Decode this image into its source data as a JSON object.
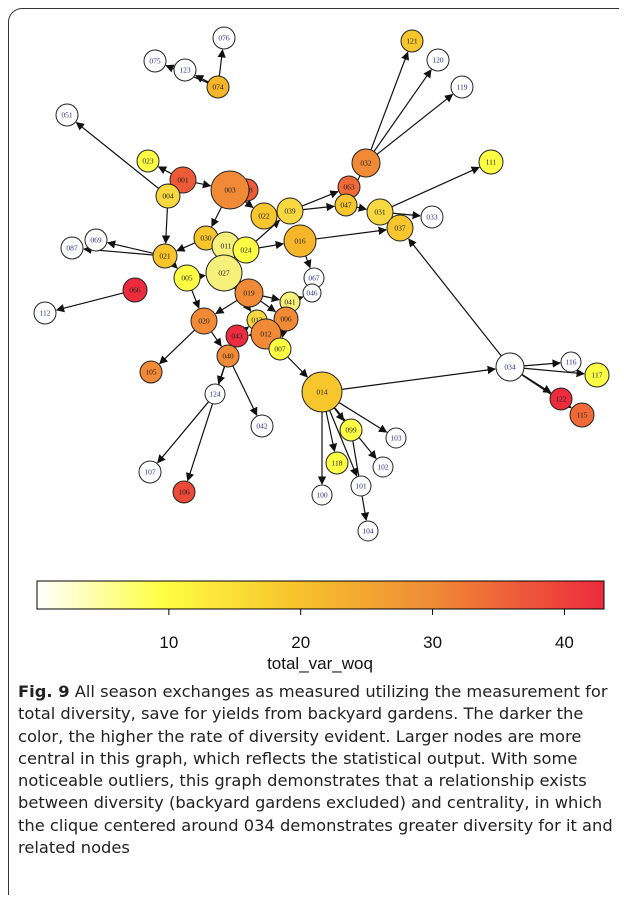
{
  "legend": {
    "label": "total_var_woq",
    "min": 0,
    "max": 43,
    "ticks": [
      "10",
      "20",
      "30",
      "40"
    ],
    "tick_values": [
      10,
      20,
      30,
      40
    ],
    "gradient_colors": [
      "#ffffff",
      "#ffff44",
      "#f7c52c",
      "#f08a36",
      "#ec2b3c"
    ]
  },
  "caption": {
    "label": "Fig. 9",
    "text": "All season exchanges as measured utilizing the measurement for total diversity, save for yields from backyard gardens. The darker the color, the higher the rate of diversity evident. Larger nodes are more central in this graph, which reflects the statistical output. With some noticeable outliers, this graph demonstrates that a relationship exists between diversity (backyard gardens excluded) and centrality, in which the clique centered around 034 demonstrates greater diversity for it and related nodes"
  },
  "graph": {
    "nodes": [
      {
        "id": "076",
        "color": "#ffffff"
      },
      {
        "id": "075",
        "color": "#ffffff"
      },
      {
        "id": "123",
        "color": "#ffffff"
      },
      {
        "id": "074",
        "color": "#f7b52a"
      },
      {
        "id": "121",
        "color": "#f7c52c"
      },
      {
        "id": "120",
        "color": "#ffffff"
      },
      {
        "id": "119",
        "color": "#ffffff"
      },
      {
        "id": "051",
        "color": "#ffffff"
      },
      {
        "id": "111",
        "color": "#ffff44"
      },
      {
        "id": "032",
        "color": "#f08a36"
      },
      {
        "id": "023",
        "color": "#ffff44"
      },
      {
        "id": "001",
        "color": "#ec5a38"
      },
      {
        "id": "004",
        "color": "#f7d840"
      },
      {
        "id": "063",
        "color": "#f06a38"
      },
      {
        "id": "028",
        "color": "#ec5a38"
      },
      {
        "id": "003",
        "color": "#f08a36"
      },
      {
        "id": "022",
        "color": "#f7c52c"
      },
      {
        "id": "039",
        "color": "#f7d840"
      },
      {
        "id": "047",
        "color": "#f7c52c"
      },
      {
        "id": "031",
        "color": "#f7d840"
      },
      {
        "id": "033",
        "color": "#ffffff"
      },
      {
        "id": "037",
        "color": "#f7c52c"
      },
      {
        "id": "030",
        "color": "#f7c52c"
      },
      {
        "id": "011",
        "color": "#f7f07a"
      },
      {
        "id": "024",
        "color": "#ffff44"
      },
      {
        "id": "016",
        "color": "#f7b52a"
      },
      {
        "id": "069",
        "color": "#ffffff"
      },
      {
        "id": "087",
        "color": "#ffffff"
      },
      {
        "id": "021",
        "color": "#f7c52c"
      },
      {
        "id": "005",
        "color": "#ffff44"
      },
      {
        "id": "027",
        "color": "#f7f07a"
      },
      {
        "id": "067",
        "color": "#ffffff"
      },
      {
        "id": "046",
        "color": "#ffffff"
      },
      {
        "id": "019",
        "color": "#f08a36"
      },
      {
        "id": "041",
        "color": "#f7f07a"
      },
      {
        "id": "066",
        "color": "#ec2b3c"
      },
      {
        "id": "112",
        "color": "#ffffff"
      },
      {
        "id": "020",
        "color": "#f08a36"
      },
      {
        "id": "013",
        "color": "#f7d840"
      },
      {
        "id": "006",
        "color": "#f08a36"
      },
      {
        "id": "043",
        "color": "#ec2b3c"
      },
      {
        "id": "012",
        "color": "#f08a36"
      },
      {
        "id": "007",
        "color": "#ffff44"
      },
      {
        "id": "040",
        "color": "#f08a36"
      },
      {
        "id": "105",
        "color": "#f08a36"
      },
      {
        "id": "034",
        "color": "#ffffff"
      },
      {
        "id": "116",
        "color": "#ffffff"
      },
      {
        "id": "117",
        "color": "#ffff44"
      },
      {
        "id": "122",
        "color": "#ec2b3c"
      },
      {
        "id": "115",
        "color": "#f06a38"
      },
      {
        "id": "014",
        "color": "#f7c52c"
      },
      {
        "id": "124",
        "color": "#ffffff"
      },
      {
        "id": "042",
        "color": "#ffffff"
      },
      {
        "id": "099",
        "color": "#ffff44"
      },
      {
        "id": "103",
        "color": "#ffffff"
      },
      {
        "id": "118",
        "color": "#ffff44"
      },
      {
        "id": "102",
        "color": "#ffffff"
      },
      {
        "id": "101",
        "color": "#ffffff"
      },
      {
        "id": "100",
        "color": "#ffffff"
      },
      {
        "id": "104",
        "color": "#ffffff"
      },
      {
        "id": "107",
        "color": "#ffffff"
      },
      {
        "id": "106",
        "color": "#ec4a38"
      }
    ],
    "edges": [
      [
        "074",
        "076"
      ],
      [
        "074",
        "075"
      ],
      [
        "074",
        "123"
      ],
      [
        "032",
        "121"
      ],
      [
        "032",
        "120"
      ],
      [
        "032",
        "119"
      ],
      [
        "004",
        "051"
      ],
      [
        "031",
        "111"
      ],
      [
        "021",
        "069"
      ],
      [
        "021",
        "087"
      ],
      [
        "066",
        "112"
      ],
      [
        "020",
        "105"
      ],
      [
        "040",
        "124"
      ],
      [
        "124",
        "107"
      ],
      [
        "040",
        "106"
      ],
      [
        "014",
        "034"
      ],
      [
        "034",
        "037"
      ],
      [
        "034",
        "116"
      ],
      [
        "034",
        "117"
      ],
      [
        "034",
        "122"
      ],
      [
        "034",
        "115"
      ],
      [
        "014",
        "099"
      ],
      [
        "014",
        "103"
      ],
      [
        "014",
        "102"
      ],
      [
        "014",
        "101"
      ],
      [
        "014",
        "100"
      ],
      [
        "099",
        "104"
      ],
      [
        "014",
        "118"
      ],
      [
        "040",
        "042"
      ],
      [
        "031",
        "033"
      ],
      [
        "001",
        "023"
      ],
      [
        "001",
        "004"
      ],
      [
        "003",
        "028"
      ],
      [
        "003",
        "022"
      ],
      [
        "022",
        "039"
      ],
      [
        "039",
        "063"
      ],
      [
        "047",
        "031"
      ],
      [
        "031",
        "037"
      ],
      [
        "032",
        "047"
      ],
      [
        "003",
        "030"
      ],
      [
        "030",
        "011"
      ],
      [
        "011",
        "024"
      ],
      [
        "024",
        "016"
      ],
      [
        "021",
        "005"
      ],
      [
        "005",
        "027"
      ],
      [
        "027",
        "019"
      ],
      [
        "019",
        "006"
      ],
      [
        "006",
        "012"
      ],
      [
        "012",
        "043"
      ],
      [
        "043",
        "013"
      ],
      [
        "020",
        "040"
      ],
      [
        "007",
        "014"
      ],
      [
        "006",
        "007"
      ],
      [
        "016",
        "067"
      ],
      [
        "041",
        "046"
      ],
      [
        "019",
        "041"
      ],
      [
        "027",
        "013"
      ],
      [
        "016",
        "037"
      ],
      [
        "039",
        "047"
      ],
      [
        "004",
        "021"
      ],
      [
        "001",
        "003"
      ],
      [
        "024",
        "039"
      ],
      [
        "030",
        "021"
      ],
      [
        "005",
        "020"
      ],
      [
        "013",
        "012"
      ],
      [
        "019",
        "020"
      ]
    ]
  }
}
